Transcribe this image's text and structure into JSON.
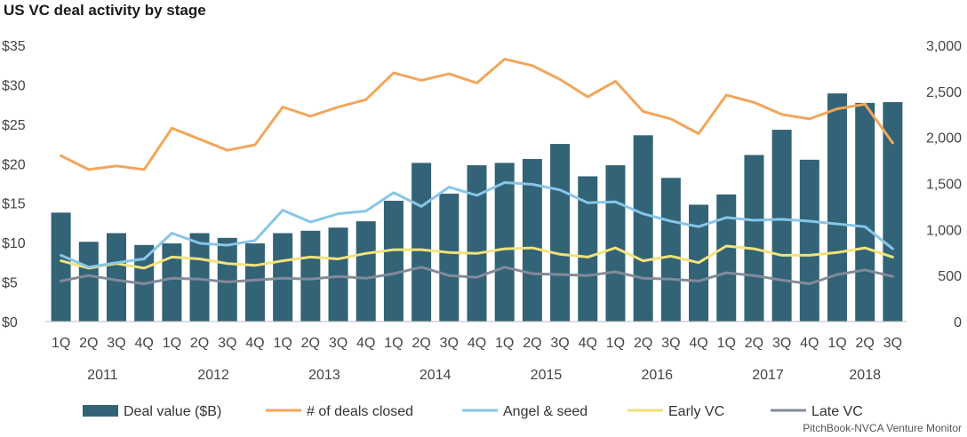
{
  "chart_data": {
    "type": "bar",
    "title": "US VC deal activity by stage",
    "source": "PitchBook-NVCA Venture Monitor",
    "categories": [
      "1Q",
      "2Q",
      "3Q",
      "4Q",
      "1Q",
      "2Q",
      "3Q",
      "4Q",
      "1Q",
      "2Q",
      "3Q",
      "4Q",
      "1Q",
      "2Q",
      "3Q",
      "4Q",
      "1Q",
      "2Q",
      "3Q",
      "4Q",
      "1Q",
      "2Q",
      "3Q",
      "4Q",
      "1Q",
      "2Q",
      "3Q",
      "4Q",
      "1Q",
      "2Q",
      "3Q"
    ],
    "year_groups": [
      {
        "label": "2011",
        "start": 0,
        "count": 4
      },
      {
        "label": "2012",
        "start": 4,
        "count": 4
      },
      {
        "label": "2013",
        "start": 8,
        "count": 4
      },
      {
        "label": "2014",
        "start": 12,
        "count": 4
      },
      {
        "label": "2015",
        "start": 16,
        "count": 4
      },
      {
        "label": "2016",
        "start": 20,
        "count": 4
      },
      {
        "label": "2017",
        "start": 24,
        "count": 4
      },
      {
        "label": "2018",
        "start": 28,
        "count": 3
      }
    ],
    "y_left": {
      "min": 0,
      "max": 35,
      "ticks": [
        "$0",
        "$5",
        "$10",
        "$15",
        "$20",
        "$25",
        "$30",
        "$35"
      ]
    },
    "y_right": {
      "min": 0,
      "max": 3000,
      "ticks": [
        "0",
        "500",
        "1,000",
        "1,500",
        "2,000",
        "2,500",
        "3,000"
      ]
    },
    "colors": {
      "deal_value": "#336377",
      "deals_closed": "#f2a65a",
      "angel_seed": "#87c6e8",
      "early_vc": "#f1e27a",
      "late_vc": "#848a99"
    },
    "series": [
      {
        "name": "Deal value ($B)",
        "type": "bar",
        "axis": "left",
        "values": [
          13.8,
          10.1,
          11.2,
          9.7,
          9.9,
          11.2,
          10.6,
          9.9,
          11.2,
          11.5,
          11.9,
          12.7,
          15.3,
          20.1,
          16.2,
          19.8,
          20.1,
          20.6,
          22.5,
          18.4,
          19.8,
          23.6,
          18.2,
          14.8,
          16.1,
          21.1,
          24.3,
          20.5,
          28.9,
          27.7,
          27.8
        ]
      },
      {
        "name": "# of deals closed",
        "type": "line",
        "axis": "right",
        "values": [
          1800,
          1650,
          1690,
          1650,
          2100,
          1980,
          1860,
          1920,
          2330,
          2230,
          2330,
          2410,
          2700,
          2620,
          2690,
          2590,
          2850,
          2780,
          2630,
          2440,
          2610,
          2280,
          2200,
          2040,
          2460,
          2380,
          2250,
          2200,
          2310,
          2360,
          1940
        ]
      },
      {
        "name": "Angel & seed",
        "type": "line",
        "axis": "right",
        "values": [
          720,
          590,
          640,
          680,
          960,
          850,
          830,
          880,
          1210,
          1080,
          1170,
          1200,
          1400,
          1250,
          1460,
          1370,
          1510,
          1490,
          1430,
          1290,
          1300,
          1170,
          1090,
          1030,
          1130,
          1100,
          1110,
          1090,
          1060,
          1030,
          790
        ]
      },
      {
        "name": "Early VC",
        "type": "line",
        "axis": "right",
        "values": [
          660,
          580,
          630,
          580,
          700,
          680,
          630,
          610,
          660,
          700,
          680,
          740,
          780,
          780,
          750,
          740,
          790,
          800,
          730,
          700,
          800,
          660,
          710,
          640,
          820,
          790,
          720,
          720,
          750,
          800,
          700
        ]
      },
      {
        "name": "Late VC",
        "type": "line",
        "axis": "right",
        "values": [
          440,
          500,
          450,
          410,
          470,
          460,
          430,
          450,
          470,
          460,
          490,
          470,
          520,
          590,
          500,
          480,
          590,
          520,
          510,
          500,
          540,
          470,
          460,
          440,
          530,
          500,
          450,
          410,
          510,
          560,
          490
        ]
      }
    ],
    "legend_position": "bottom",
    "grid": false
  }
}
